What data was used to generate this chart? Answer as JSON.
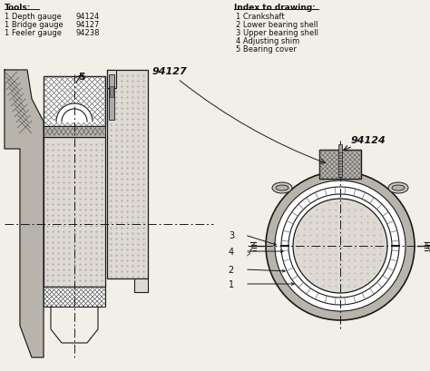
{
  "bg_color": "#f2efe9",
  "tools_header": "Tools:",
  "tools": [
    {
      "qty": "1",
      "name": "Depth gauge",
      "code": "94124"
    },
    {
      "qty": "1",
      "name": "Bridge gauge",
      "code": "94127"
    },
    {
      "qty": "1",
      "name": "Feeler gauge",
      "code": "94238"
    }
  ],
  "index_header": "Index to drawing:",
  "index_items": [
    "1 Crankshaft",
    "2 Lower bearing shell",
    "3 Upper bearing shell",
    "4 Adjusting shim",
    "5 Bearing cover"
  ],
  "lc": "#1a1a1a",
  "hatch_fc": "#b8b4ac",
  "body_fc": "#e8e5df",
  "dot_bg": "#dedad3",
  "label_94127": "94127",
  "label_94124": "94124"
}
